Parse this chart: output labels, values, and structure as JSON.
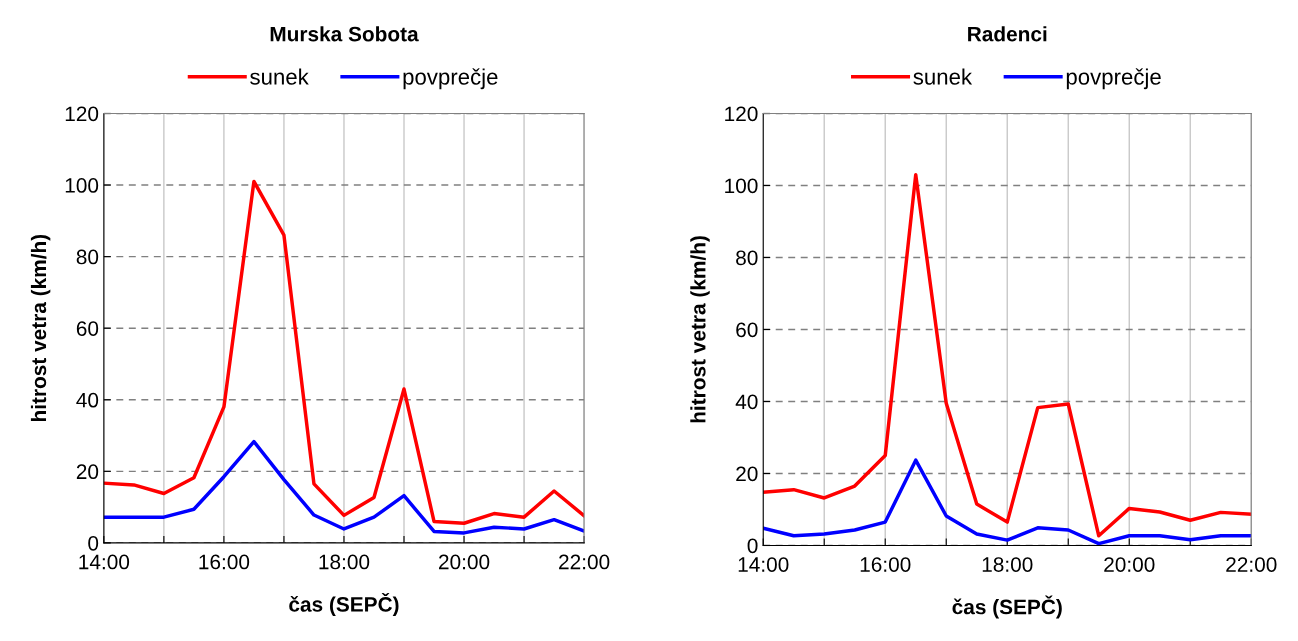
{
  "chart_data": [
    {
      "type": "line",
      "title": "Murska Sobota",
      "xlabel": "čas (SEPČ)",
      "ylabel": "hitrost vetra (km/h)",
      "x": [
        14,
        14.5,
        15,
        15.5,
        16,
        16.5,
        17,
        17.5,
        18,
        18.5,
        19,
        19.5,
        20,
        20.5,
        21,
        21.5,
        22
      ],
      "series": [
        {
          "name": "sunek",
          "color": "#ff0000",
          "values": [
            16.7,
            16.2,
            13.8,
            18.2,
            38,
            101,
            86,
            16.5,
            7.7,
            12.7,
            43,
            6,
            5.5,
            8.2,
            7.2,
            14.5,
            7.6
          ]
        },
        {
          "name": "povprečje",
          "color": "#0000ff",
          "values": [
            7.2,
            7.2,
            7.2,
            9.4,
            18.5,
            28.3,
            17.7,
            7.8,
            3.9,
            7.2,
            13.2,
            3.2,
            2.8,
            4.4,
            3.9,
            6.5,
            3.3
          ]
        }
      ],
      "xlim": [
        14,
        22
      ],
      "xticks": [
        {
          "value": 14,
          "label": "14:00"
        },
        {
          "value": 15,
          "label": null
        },
        {
          "value": 16,
          "label": "16:00"
        },
        {
          "value": 17,
          "label": null
        },
        {
          "value": 18,
          "label": "18:00"
        },
        {
          "value": 19,
          "label": null
        },
        {
          "value": 20,
          "label": "20:00"
        },
        {
          "value": 21,
          "label": null
        },
        {
          "value": 22,
          "label": "22:00"
        }
      ],
      "ylim": [
        0,
        120
      ],
      "yticks": [
        0,
        20,
        40,
        60,
        80,
        100,
        120
      ],
      "grid": true,
      "legend": "top",
      "marker": "none",
      "line_style": "solid"
    },
    {
      "type": "line",
      "title": "Radenci",
      "xlabel": "čas (SEPČ)",
      "ylabel": "hitrost vetra (km/h)",
      "x": [
        14,
        14.5,
        15,
        15.5,
        16,
        16.5,
        17,
        17.5,
        18,
        18.5,
        19,
        19.5,
        20,
        20.5,
        21,
        21.5,
        22
      ],
      "series": [
        {
          "name": "sunek",
          "color": "#ff0000",
          "values": [
            14.8,
            15.5,
            13.2,
            16.5,
            25,
            103,
            39.5,
            11.5,
            6.5,
            38.3,
            39.3,
            2.7,
            10.3,
            9.3,
            7,
            9.2,
            8.7
          ]
        },
        {
          "name": "povprečje",
          "color": "#0000ff",
          "values": [
            4.8,
            2.7,
            3.2,
            4.3,
            6.5,
            23.7,
            8.2,
            3.2,
            1.5,
            4.9,
            4.3,
            0.5,
            2.7,
            2.7,
            1.6,
            2.7,
            2.7
          ]
        }
      ],
      "xlim": [
        14,
        22
      ],
      "xticks": [
        {
          "value": 14,
          "label": "14:00"
        },
        {
          "value": 15,
          "label": null
        },
        {
          "value": 16,
          "label": "16:00"
        },
        {
          "value": 17,
          "label": null
        },
        {
          "value": 18,
          "label": "18:00"
        },
        {
          "value": 19,
          "label": null
        },
        {
          "value": 20,
          "label": "20:00"
        },
        {
          "value": 21,
          "label": null
        },
        {
          "value": 22,
          "label": "22:00"
        }
      ],
      "ylim": [
        0,
        120
      ],
      "yticks": [
        0,
        20,
        40,
        60,
        80,
        100,
        120
      ],
      "grid": true,
      "legend": "top",
      "marker": "none",
      "line_style": "solid"
    }
  ]
}
